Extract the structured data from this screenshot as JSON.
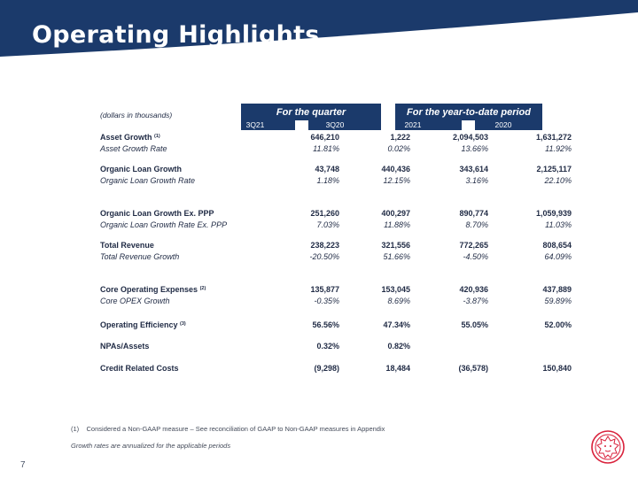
{
  "slide": {
    "title": "Operating Highlights",
    "page_number": "7"
  },
  "table": {
    "units_note": "(dollars in thousands)",
    "groups": [
      "For the quarter",
      "For the year-to-date period"
    ],
    "columns": [
      "3Q21",
      "3Q20",
      "2021",
      "2020"
    ],
    "rows": [
      {
        "label": "Asset Growth",
        "sup": "(1)",
        "style": "bold",
        "values": [
          "646,210",
          "1,222",
          "2,094,503",
          "1,631,272"
        ]
      },
      {
        "label": "Asset Growth Rate",
        "sup": "",
        "style": "ital",
        "values": [
          "11.81%",
          "0.02%",
          "13.66%",
          "11.92%"
        ]
      },
      {
        "label": "Organic Loan Growth",
        "sup": "",
        "style": "bold",
        "values": [
          "43,748",
          "440,436",
          "343,614",
          "2,125,117"
        ]
      },
      {
        "label": "Organic Loan Growth Rate",
        "sup": "",
        "style": "ital",
        "values": [
          "1.18%",
          "12.15%",
          "3.16%",
          "22.10%"
        ]
      },
      {
        "label": "Organic Loan Growth Ex. PPP",
        "sup": "",
        "style": "bold",
        "values": [
          "251,260",
          "400,297",
          "890,774",
          "1,059,939"
        ]
      },
      {
        "label": "Organic Loan Growth Rate Ex. PPP",
        "sup": "",
        "style": "ital",
        "values": [
          "7.03%",
          "11.88%",
          "8.70%",
          "11.03%"
        ]
      },
      {
        "label": "Total Revenue",
        "sup": "",
        "style": "bold",
        "values": [
          "238,223",
          "321,556",
          "772,265",
          "808,654"
        ]
      },
      {
        "label": "Total Revenue Growth",
        "sup": "",
        "style": "ital",
        "values": [
          "-20.50%",
          "51.66%",
          "-4.50%",
          "64.09%"
        ]
      },
      {
        "label": "Core Operating Expenses",
        "sup": "(2)",
        "style": "bold",
        "values": [
          "135,877",
          "153,045",
          "420,936",
          "437,889"
        ]
      },
      {
        "label": "Core OPEX Growth",
        "sup": "",
        "style": "ital",
        "values": [
          "-0.35%",
          "8.69%",
          "-3.87%",
          "59.89%"
        ]
      },
      {
        "label": "Operating Efficiency",
        "sup": "(3)",
        "style": "bold",
        "values": [
          "56.56%",
          "47.34%",
          "55.05%",
          "52.00%"
        ]
      },
      {
        "label": "NPAs/Assets",
        "sup": "",
        "style": "bold",
        "values": [
          "0.32%",
          "0.82%",
          "",
          ""
        ]
      },
      {
        "label": "Credit Related Costs",
        "sup": "",
        "style": "bold",
        "values": [
          "(9,298)",
          "18,484",
          "(36,578)",
          "150,840"
        ]
      }
    ]
  },
  "footnotes": {
    "note1_marker": "(1)",
    "note1_text": "Considered a Non-GAAP measure – See reconciliation of GAAP to Non-GAAP measures in Appendix",
    "note2": "Growth rates are annualized for the applicable periods"
  },
  "colors": {
    "header_blue": "#1b3a6b",
    "logo_red": "#d9223c"
  }
}
